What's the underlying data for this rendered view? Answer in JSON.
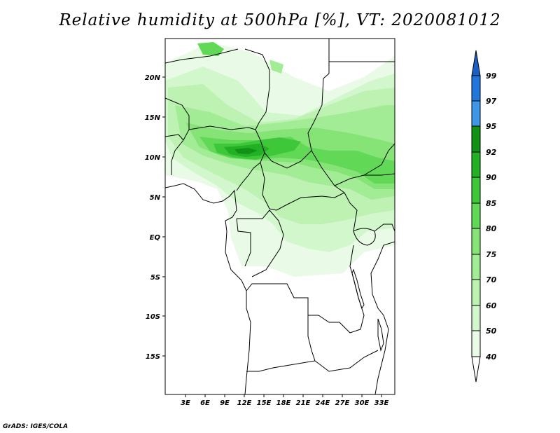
{
  "title": "Relative humidity at 500hPa [%], VT: 2020081012",
  "footer": "GrADS: IGES/COLA",
  "map": {
    "lat_labels": [
      "20N",
      "15N",
      "10N",
      "5N",
      "EQ",
      "5S",
      "10S",
      "15S"
    ],
    "lon_labels": [
      "3E",
      "6E",
      "9E",
      "12E",
      "15E",
      "18E",
      "21E",
      "24E",
      "27E",
      "30E",
      "33E"
    ]
  },
  "legend": {
    "labels": [
      "99",
      "97",
      "95",
      "92",
      "90",
      "85",
      "80",
      "75",
      "70",
      "60",
      "50",
      "40"
    ],
    "colors": {
      "c40_50": "#e9fbe6",
      "c50_60": "#d2f7cc",
      "c60_70": "#bdf2b3",
      "c70_75": "#a3ec96",
      "c75_80": "#86e477",
      "c80_85": "#62d857",
      "c85_90": "#3fc73a",
      "c90_92": "#22b025",
      "c92_95": "#119216",
      "c95_97": "#3f97e8",
      "c97_99": "#2277dd",
      "c99_top": "#1a5fc8"
    }
  }
}
